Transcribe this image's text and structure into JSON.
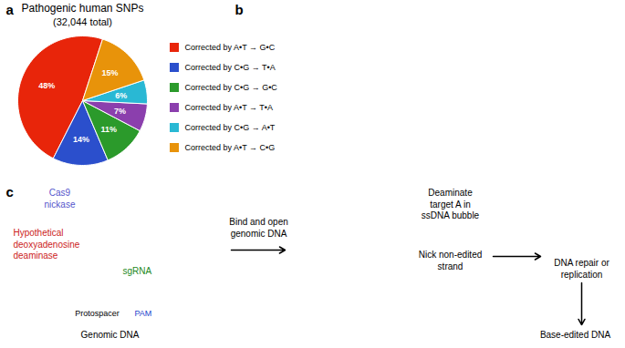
{
  "chart_data": {
    "type": "pie",
    "title": "Pathogenic human SNPs",
    "subtitle": "(32,044 total)",
    "categories": [
      "Corrected by A•T → G•C",
      "Corrected by C•G → T•A",
      "Corrected by C•G → G•C",
      "Corrected by A•T → T•A",
      "Corrected by C•G → A•T",
      "Corrected by A•T → C•G"
    ],
    "values": [
      48,
      14,
      11,
      7,
      6,
      15
    ],
    "value_labels": [
      "48%",
      "14%",
      "11%",
      "7%",
      "6%",
      "15%"
    ],
    "colors": [
      "#e8250a",
      "#2b4fcc",
      "#2b9a2b",
      "#8b3fad",
      "#29b8d4",
      "#e8930a"
    ],
    "data_labels": true,
    "legend": "right",
    "annotations": [
      {
        "text": "a",
        "color": "#000000"
      },
      {
        "text": "b",
        "color": "#000000"
      },
      {
        "text": "c",
        "color": "#000000"
      },
      {
        "text": "Cas9\nnickase",
        "color": "#5555cc"
      },
      {
        "text": "Hypothetical\ndeoxyadenosine\ndeaminase",
        "color": "#cc2222"
      },
      {
        "text": "sgRNA",
        "color": "#228822"
      },
      {
        "text": "Protospacer",
        "color": "#000000"
      },
      {
        "text": "PAM",
        "color": "#2244cc"
      },
      {
        "text": "Genomic DNA",
        "color": "#000000"
      },
      {
        "text": "Bind and open\ngenomic DNA",
        "color": "#000000"
      },
      {
        "text": "Deaminate\ntarget A in\nssDNA bubble",
        "color": "#000000"
      },
      {
        "text": "Nick non-edited\nstrand",
        "color": "#000000"
      },
      {
        "text": "DNA repair or\nreplication",
        "color": "#000000"
      },
      {
        "text": "Base-edited DNA",
        "color": "#000000"
      }
    ]
  }
}
